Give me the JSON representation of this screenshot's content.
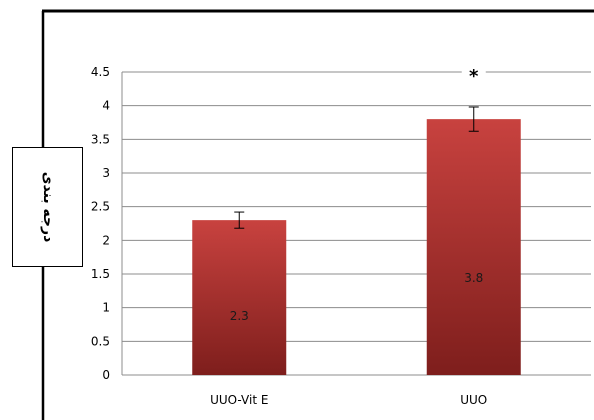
{
  "chart_data": {
    "type": "bar",
    "categories": [
      "UUO-Vit E",
      "UUO"
    ],
    "values": [
      2.3,
      3.8
    ],
    "value_labels": [
      "2.3",
      "3.8"
    ],
    "errors": [
      0.12,
      0.18
    ],
    "ylabel": "درجه بندی",
    "ylim": [
      0,
      4.5
    ],
    "yticks": [
      "0",
      "0.5",
      "1",
      "1.5",
      "2",
      "2.5",
      "3",
      "3.5",
      "4",
      "4.5"
    ],
    "annotations": [
      {
        "category": "UUO",
        "text": "*"
      }
    ],
    "grid": true,
    "legend": "none",
    "colors": {
      "bar_top": "#c8423f",
      "bar_bottom": "#7e1e1c",
      "grid": "#8c8c8c",
      "frame": "#000000"
    }
  }
}
